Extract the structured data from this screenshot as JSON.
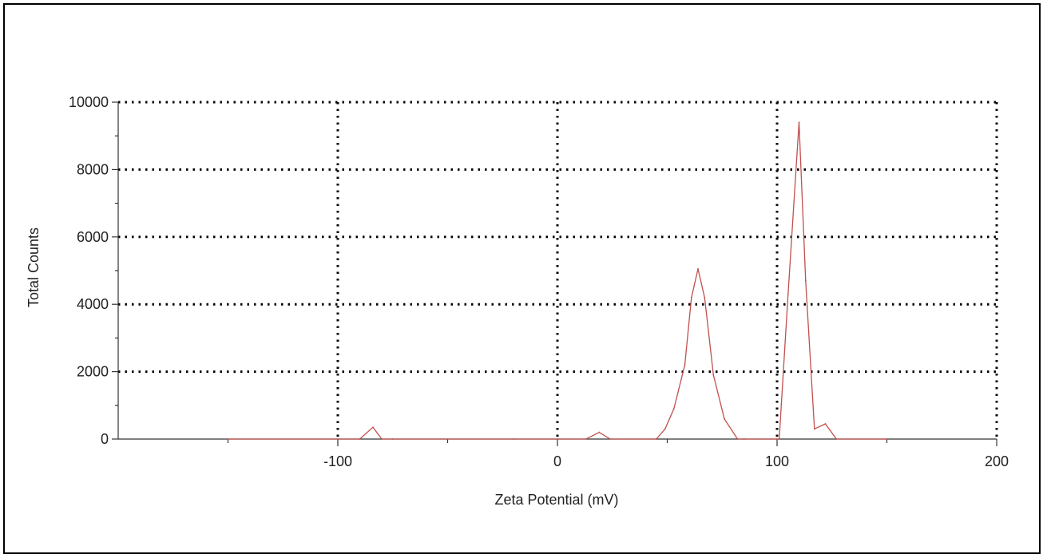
{
  "chart_data": {
    "type": "line",
    "title": "",
    "xlabel": "Zeta Potential (mV)",
    "ylabel": "Total Counts",
    "xlim": [
      -200,
      200
    ],
    "ylim": [
      0,
      10000
    ],
    "x_ticks": [
      -100,
      0,
      100,
      200
    ],
    "y_ticks": [
      0,
      2000,
      4000,
      6000,
      8000,
      10000
    ],
    "x_tick_labels": [
      "-100",
      "0",
      "100",
      "200"
    ],
    "y_tick_labels": [
      "0",
      "2000",
      "4000",
      "6000",
      "8000",
      "10000"
    ],
    "grid": true,
    "legend": "none",
    "series": [
      {
        "color": "#c0504d",
        "x": [
          -150,
          -90,
          -84,
          -80,
          -75,
          -20,
          13,
          19,
          24,
          45,
          49,
          53,
          58,
          61,
          64,
          67,
          71,
          76,
          82,
          85,
          101,
          105,
          110,
          113,
          117,
          122,
          127,
          150
        ],
        "y": [
          0,
          0,
          350,
          0,
          0,
          0,
          0,
          200,
          0,
          0,
          300,
          900,
          2200,
          4200,
          5050,
          4200,
          1900,
          600,
          0,
          0,
          0,
          4300,
          9400,
          4700,
          300,
          450,
          0,
          0
        ]
      }
    ]
  }
}
